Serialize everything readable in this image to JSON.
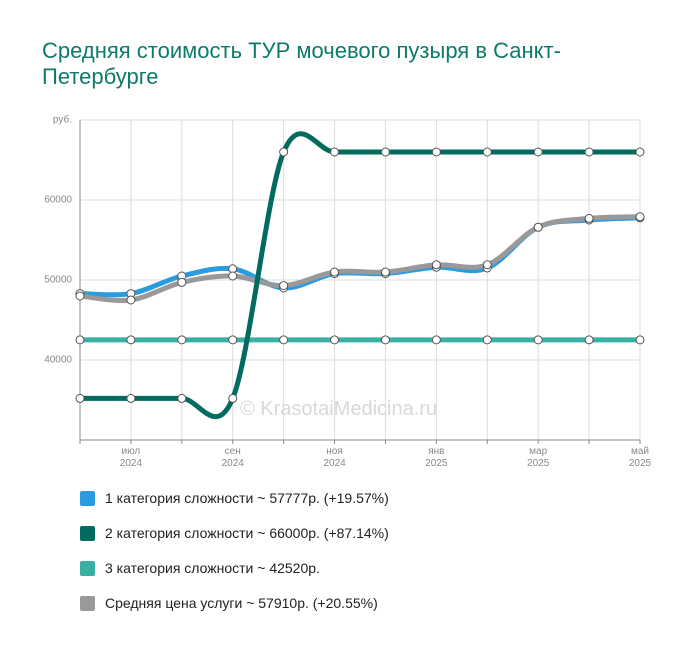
{
  "chart_data": {
    "type": "line",
    "title": "Средняя стоимость ТУР мочевого пузыря в Санкт-Петербурге",
    "watermark": "© KrasotaiMedicina.ru",
    "categories": [
      null,
      "июл 2024",
      null,
      "сен 2024",
      null,
      "ноя 2024",
      null,
      "янв 2025",
      null,
      "мар 2025",
      null,
      "май 2025"
    ],
    "series": [
      {
        "name": "1 категория сложности ~ 57777р. (+19.57%)",
        "color": "#2b9be0",
        "values": [
          48300,
          48300,
          50500,
          51400,
          49000,
          50800,
          50800,
          51600,
          51500,
          56600,
          57500,
          57777
        ]
      },
      {
        "name": "2 категория сложности ~ 66000р. (+87.14%)",
        "color": "#006b5e",
        "values": [
          35200,
          35200,
          35200,
          35200,
          66000,
          66000,
          66000,
          66000,
          66000,
          66000,
          66000,
          66000
        ]
      },
      {
        "name": "3 категория сложности ~ 42520р.",
        "color": "#3aafa4",
        "values": [
          42520,
          42520,
          42520,
          42520,
          42520,
          42520,
          42520,
          42520,
          42520,
          42520,
          42520,
          42520
        ]
      },
      {
        "name": "Средняя цена услуги ~ 57910р. (+20.55%)",
        "color": "#999999",
        "values": [
          48000,
          47500,
          49700,
          50500,
          49300,
          51000,
          51000,
          51900,
          51900,
          56600,
          57700,
          57910
        ]
      }
    ],
    "ylim": [
      30000,
      70000
    ],
    "yticks": [
      40000,
      50000,
      60000,
      {
        "value": 70000,
        "label": "руб."
      }
    ],
    "grid": true
  }
}
